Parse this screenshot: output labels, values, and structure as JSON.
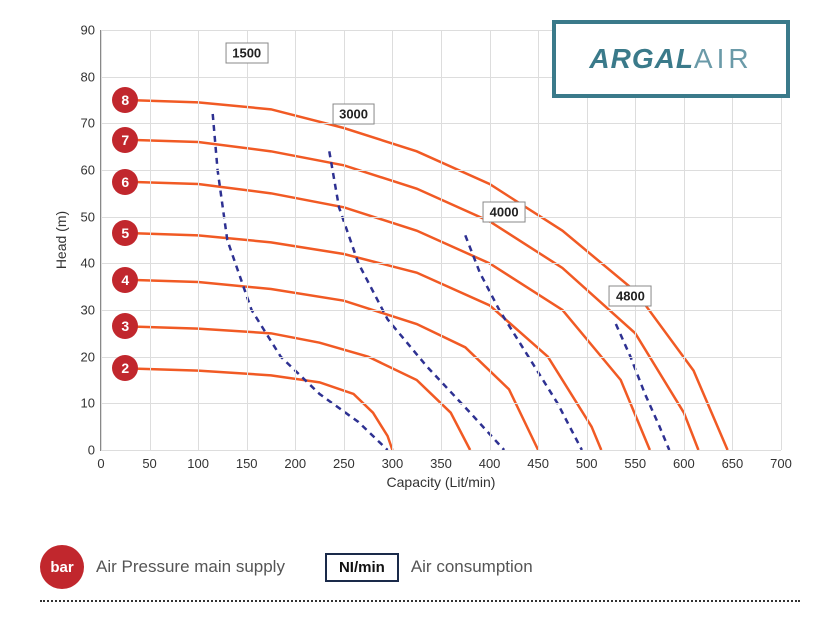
{
  "chart": {
    "type": "line",
    "xlabel": "Capacity (Lit/min)",
    "ylabel": "Head (m)",
    "xlim": [
      0,
      700
    ],
    "ylim": [
      0,
      90
    ],
    "xtick_step": 50,
    "ytick_step": 10,
    "background_color": "#ffffff",
    "grid_color": "#dddddd",
    "axis_color": "#888888",
    "tick_fontsize": 13,
    "label_fontsize": 14,
    "curves": [
      {
        "bar": 2,
        "color": "#f15a24",
        "badge_color": "#c1272d",
        "line_width": 2.5,
        "points": [
          [
            25,
            17.5
          ],
          [
            100,
            17
          ],
          [
            175,
            16
          ],
          [
            225,
            14.5
          ],
          [
            260,
            12
          ],
          [
            280,
            8
          ],
          [
            295,
            3
          ],
          [
            300,
            0
          ]
        ]
      },
      {
        "bar": 3,
        "color": "#f15a24",
        "badge_color": "#c1272d",
        "line_width": 2.5,
        "points": [
          [
            25,
            26.5
          ],
          [
            100,
            26
          ],
          [
            175,
            25
          ],
          [
            225,
            23
          ],
          [
            275,
            20
          ],
          [
            325,
            15
          ],
          [
            360,
            8
          ],
          [
            380,
            0
          ]
        ]
      },
      {
        "bar": 4,
        "color": "#f15a24",
        "badge_color": "#c1272d",
        "line_width": 2.5,
        "points": [
          [
            25,
            36.5
          ],
          [
            100,
            36
          ],
          [
            175,
            34.5
          ],
          [
            250,
            32
          ],
          [
            325,
            27
          ],
          [
            375,
            22
          ],
          [
            420,
            13
          ],
          [
            450,
            0
          ]
        ]
      },
      {
        "bar": 5,
        "color": "#f15a24",
        "badge_color": "#c1272d",
        "line_width": 2.5,
        "points": [
          [
            25,
            46.5
          ],
          [
            100,
            46
          ],
          [
            175,
            44.5
          ],
          [
            250,
            42
          ],
          [
            325,
            38
          ],
          [
            400,
            31
          ],
          [
            460,
            20
          ],
          [
            505,
            5
          ],
          [
            515,
            0
          ]
        ]
      },
      {
        "bar": 6,
        "color": "#f15a24",
        "badge_color": "#c1272d",
        "line_width": 2.5,
        "points": [
          [
            25,
            57.5
          ],
          [
            100,
            57
          ],
          [
            175,
            55
          ],
          [
            250,
            52
          ],
          [
            325,
            47
          ],
          [
            400,
            40
          ],
          [
            475,
            30
          ],
          [
            535,
            15
          ],
          [
            565,
            0
          ]
        ]
      },
      {
        "bar": 7,
        "color": "#f15a24",
        "badge_color": "#c1272d",
        "line_width": 2.5,
        "points": [
          [
            25,
            66.5
          ],
          [
            100,
            66
          ],
          [
            175,
            64
          ],
          [
            250,
            61
          ],
          [
            325,
            56
          ],
          [
            400,
            49
          ],
          [
            475,
            39
          ],
          [
            550,
            25
          ],
          [
            600,
            8
          ],
          [
            615,
            0
          ]
        ]
      },
      {
        "bar": 8,
        "color": "#f15a24",
        "badge_color": "#c1272d",
        "line_width": 2.5,
        "points": [
          [
            25,
            75
          ],
          [
            100,
            74.5
          ],
          [
            175,
            73
          ],
          [
            250,
            69
          ],
          [
            325,
            64
          ],
          [
            400,
            57
          ],
          [
            475,
            47
          ],
          [
            550,
            34
          ],
          [
            610,
            17
          ],
          [
            645,
            0
          ]
        ]
      }
    ],
    "air_curves": [
      {
        "label": "1500",
        "color": "#2e3192",
        "line_width": 2.5,
        "dash": "6,5",
        "label_pos": [
          150,
          85
        ],
        "points": [
          [
            115,
            72
          ],
          [
            120,
            60
          ],
          [
            130,
            45
          ],
          [
            155,
            30
          ],
          [
            185,
            20
          ],
          [
            225,
            12
          ],
          [
            265,
            6
          ],
          [
            295,
            0
          ]
        ]
      },
      {
        "label": "3000",
        "color": "#2e3192",
        "line_width": 2.5,
        "dash": "6,5",
        "label_pos": [
          260,
          72
        ],
        "points": [
          [
            235,
            64
          ],
          [
            245,
            52
          ],
          [
            265,
            40
          ],
          [
            295,
            28
          ],
          [
            335,
            18
          ],
          [
            380,
            8
          ],
          [
            415,
            0
          ]
        ]
      },
      {
        "label": "4000",
        "color": "#2e3192",
        "line_width": 2.5,
        "dash": "6,5",
        "label_pos": [
          415,
          51
        ],
        "points": [
          [
            375,
            46
          ],
          [
            390,
            38
          ],
          [
            410,
            30
          ],
          [
            440,
            20
          ],
          [
            470,
            10
          ],
          [
            495,
            0
          ]
        ]
      },
      {
        "label": "4800",
        "color": "#2e3192",
        "line_width": 2.5,
        "dash": "6,5",
        "label_pos": [
          545,
          33
        ],
        "points": [
          [
            530,
            27
          ],
          [
            545,
            20
          ],
          [
            560,
            12
          ],
          [
            575,
            5
          ],
          [
            585,
            0
          ]
        ]
      }
    ]
  },
  "logo": {
    "brand": "ARGAL",
    "suffix": "AIR",
    "border_color": "#3a7a8a",
    "text_color": "#3a7a8a"
  },
  "legend": {
    "bar_label": "bar",
    "bar_text": "Air Pressure main supply",
    "bar_color": "#c1272d",
    "flow_label": "NI/min",
    "flow_text": "Air consumption",
    "flow_border": "#1a2a4a"
  }
}
